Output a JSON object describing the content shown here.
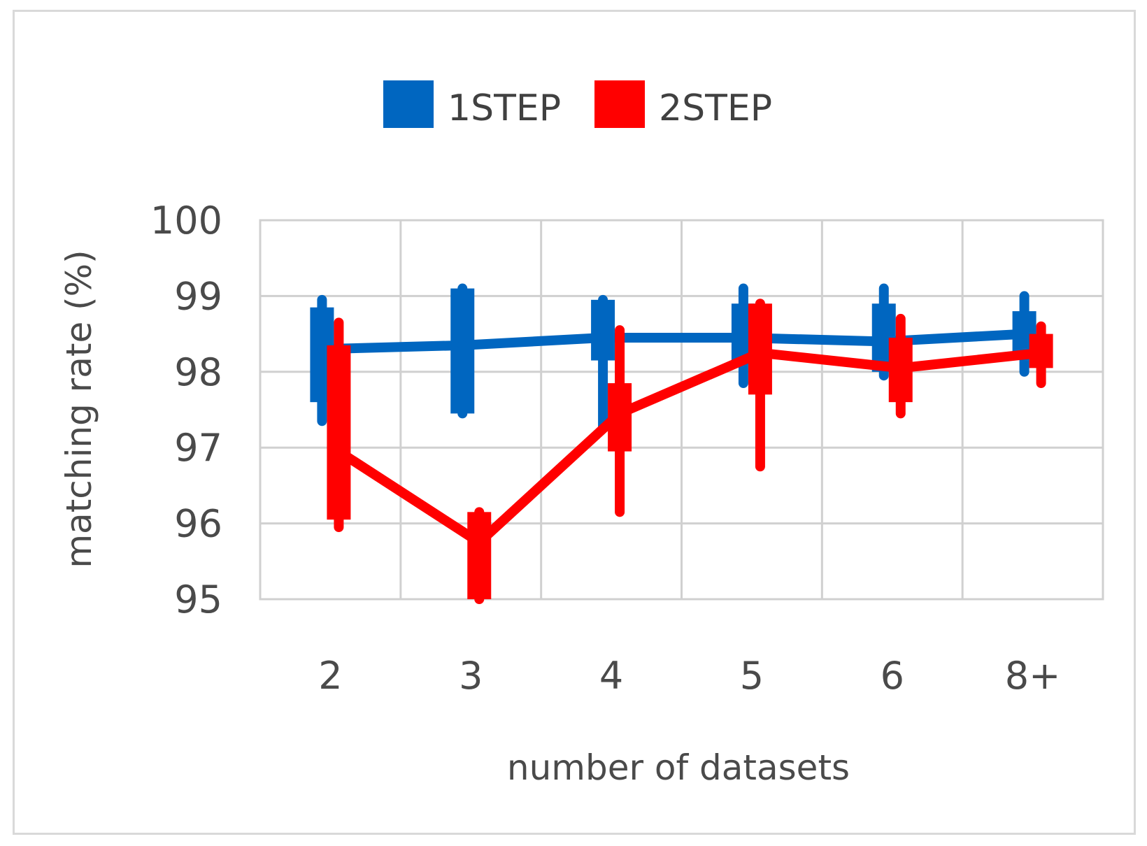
{
  "chart_data": {
    "type": "line",
    "categories": [
      "2",
      "3",
      "4",
      "5",
      "6",
      "8+"
    ],
    "yticks": [
      "95",
      "96",
      "97",
      "98",
      "99",
      "100"
    ],
    "ylim": [
      95,
      100
    ],
    "xlabel": "number of datasets",
    "ylabel": "matching rate (%)",
    "grid": true,
    "legend_position": "top",
    "series": [
      {
        "name": "1STEP",
        "color": "#0066c0",
        "values": [
          98.3,
          98.35,
          98.45,
          98.45,
          98.4,
          98.5
        ],
        "box_low": [
          97.6,
          97.45,
          98.15,
          98.1,
          98.0,
          98.2
        ],
        "box_high": [
          98.85,
          99.1,
          98.95,
          98.9,
          98.9,
          98.8
        ],
        "whisker_low": [
          97.35,
          97.45,
          97.25,
          97.85,
          97.95,
          98.0
        ],
        "whisker_high": [
          98.95,
          99.1,
          98.95,
          99.1,
          99.1,
          99.0
        ]
      },
      {
        "name": "2STEP",
        "color": "#ff0000",
        "values": [
          96.95,
          95.75,
          97.45,
          98.25,
          98.05,
          98.25
        ],
        "box_low": [
          96.05,
          95.0,
          96.95,
          97.7,
          97.6,
          98.05
        ],
        "box_high": [
          98.35,
          96.15,
          97.85,
          98.9,
          98.45,
          98.5
        ],
        "whisker_low": [
          95.95,
          95.0,
          96.15,
          96.75,
          97.45,
          97.85
        ],
        "whisker_high": [
          98.65,
          96.15,
          98.55,
          98.9,
          98.7,
          98.6
        ]
      }
    ]
  }
}
